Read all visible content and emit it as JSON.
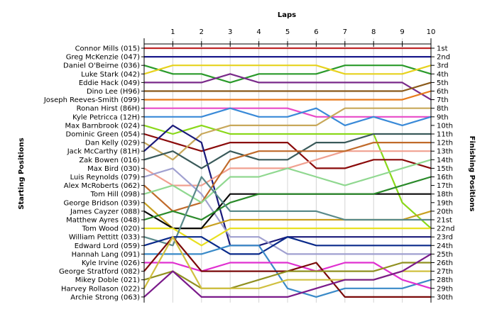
{
  "chart_data": {
    "type": "line",
    "title": "",
    "top_axis_label": "Laps",
    "left_axis_label": "Starting Positions",
    "right_axis_label": "Finishing Positions",
    "laps": [
      1,
      2,
      3,
      4,
      5,
      6,
      7,
      8,
      9,
      10
    ],
    "finishing_labels": [
      "1st",
      "2nd",
      "3rd",
      "4th",
      "5th",
      "6th",
      "7th",
      "8th",
      "9th",
      "10th",
      "11th",
      "12th",
      "13th",
      "14th",
      "15th",
      "16th",
      "17th",
      "18th",
      "19th",
      "20th",
      "21st",
      "22nd",
      "23rd",
      "24th",
      "25th",
      "26th",
      "27th",
      "28th",
      "29th",
      "30th"
    ],
    "grid": "vertical",
    "series": [
      {
        "name": "Connor Mills (015)",
        "color": "#c0282a",
        "positions": [
          1,
          1,
          1,
          1,
          1,
          1,
          1,
          1,
          1,
          1,
          1
        ]
      },
      {
        "name": "Greg McKenzie (047)",
        "color": "#1a1a8c",
        "positions": [
          2,
          2,
          2,
          2,
          2,
          2,
          2,
          2,
          2,
          2,
          2
        ]
      },
      {
        "name": "Daniel O'Beirne (036)",
        "color": "#2a9a2a",
        "positions": [
          3,
          4,
          4,
          5,
          4,
          4,
          4,
          3,
          3,
          3,
          4
        ]
      },
      {
        "name": "Luke Stark (042)",
        "color": "#e6d21e",
        "positions": [
          4,
          3,
          3,
          3,
          3,
          3,
          3,
          4,
          4,
          4,
          3
        ]
      },
      {
        "name": "Eddie Hack (049)",
        "color": "#7a2a8a",
        "positions": [
          5,
          5,
          5,
          4,
          5,
          5,
          5,
          5,
          5,
          5,
          7
        ]
      },
      {
        "name": "Dino Lee (H96)",
        "color": "#8a5a1a",
        "positions": [
          6,
          6,
          6,
          6,
          6,
          6,
          6,
          6,
          6,
          6,
          5
        ]
      },
      {
        "name": "Joseph Reeves-Smith (099)",
        "color": "#e87a1a",
        "positions": [
          7,
          7,
          7,
          7,
          7,
          7,
          7,
          7,
          7,
          7,
          6
        ]
      },
      {
        "name": "Ronan Hirst (86H)",
        "color": "#e84ac8",
        "positions": [
          8,
          8,
          8,
          8,
          8,
          8,
          9,
          9,
          9,
          9,
          9
        ]
      },
      {
        "name": "Kyle Petricca (12H)",
        "color": "#3a8ad8",
        "positions": [
          9,
          9,
          9,
          8,
          9,
          9,
          8,
          10,
          9,
          10,
          9
        ]
      },
      {
        "name": "Max Barnbrook (024)",
        "color": "#8ad81a",
        "positions": [
          10,
          11,
          10,
          11,
          11,
          11,
          11,
          11,
          11,
          19,
          22
        ]
      },
      {
        "name": "Dominic Green (054)",
        "color": "#8a0a0a",
        "positions": [
          11,
          12,
          13,
          12,
          12,
          12,
          15,
          15,
          14,
          14,
          15
        ]
      },
      {
        "name": "Dan Kelly (029)",
        "color": "#c8a85a",
        "positions": [
          12,
          14,
          11,
          10,
          10,
          10,
          10,
          8,
          8,
          8,
          8
        ]
      },
      {
        "name": "Jack McCarthy (81H)",
        "color": "#1a1a7a",
        "positions": [
          13,
          10,
          12,
          24,
          24,
          23,
          23,
          23,
          23,
          23,
          23
        ]
      },
      {
        "name": "Zak Bowen (016)",
        "color": "#3a5a5a",
        "positions": [
          14,
          13,
          15,
          13,
          14,
          14,
          12,
          12,
          11,
          11,
          11
        ]
      },
      {
        "name": "Max Bird (030)",
        "color": "#f0a090",
        "positions": [
          15,
          17,
          17,
          15,
          15,
          15,
          14,
          13,
          13,
          13,
          13
        ]
      },
      {
        "name": "Luis Reynolds (079)",
        "color": "#a0a0d0",
        "positions": [
          16,
          15,
          18,
          23,
          23,
          25,
          25,
          25,
          25,
          25,
          25
        ]
      },
      {
        "name": "Alex McRoberts (062)",
        "color": "#c06a2a",
        "positions": [
          17,
          20,
          19,
          14,
          13,
          13,
          13,
          13,
          12,
          12,
          12
        ]
      },
      {
        "name": "Tom Hill (098)",
        "color": "#90d890",
        "positions": [
          18,
          17,
          19,
          16,
          16,
          15,
          16,
          17,
          16,
          15,
          14
        ]
      },
      {
        "name": "George Bridson (039)",
        "color": "#c8a020",
        "positions": [
          19,
          22,
          22,
          21,
          21,
          21,
          21,
          21,
          21,
          21,
          20
        ]
      },
      {
        "name": "James Cayzer (088)",
        "color": "#0a0a0a",
        "positions": [
          20,
          22,
          22,
          18,
          18,
          18,
          18,
          18,
          18,
          18,
          18
        ]
      },
      {
        "name": "Matthew Ayres (048)",
        "color": "#2a8a2a",
        "positions": [
          21,
          20,
          21,
          19,
          18,
          18,
          18,
          18,
          18,
          17,
          16
        ]
      },
      {
        "name": "Tom Wood (020)",
        "color": "#e8e020",
        "positions": [
          22,
          22,
          24,
          22,
          22,
          22,
          22,
          22,
          22,
          22,
          22
        ]
      },
      {
        "name": "William Pettitt (033)",
        "color": "#5a8a8a",
        "positions": [
          23,
          24,
          16,
          20,
          20,
          20,
          20,
          21,
          21,
          21,
          21
        ]
      },
      {
        "name": "Edward Lord (059)",
        "color": "#0a2a8a",
        "positions": [
          24,
          23,
          23,
          25,
          25,
          23,
          24,
          24,
          24,
          24,
          24
        ]
      },
      {
        "name": "Hannah Lang (091)",
        "color": "#3a8ac8",
        "positions": [
          25,
          25,
          25,
          24,
          24,
          29,
          30,
          29,
          29,
          29,
          28
        ]
      },
      {
        "name": "Kyle Irvine (026)",
        "color": "#e030d0",
        "positions": [
          26,
          26,
          27,
          26,
          26,
          26,
          27,
          26,
          26,
          28,
          29
        ]
      },
      {
        "name": "George Stratford (082)",
        "color": "#7a0a0a",
        "positions": [
          27,
          23,
          27,
          27,
          27,
          27,
          26,
          30,
          30,
          30,
          30
        ]
      },
      {
        "name": "Mikey Doble (021)",
        "color": "#909020",
        "positions": [
          28,
          27,
          29,
          29,
          28,
          27,
          27,
          27,
          27,
          26,
          26
        ]
      },
      {
        "name": "Harvey Rollason (022)",
        "color": "#d0c040",
        "positions": [
          29,
          23,
          29,
          29,
          29,
          28,
          28,
          28,
          28,
          27,
          27
        ]
      },
      {
        "name": "Archie Strong (063)",
        "color": "#7a1a8a",
        "positions": [
          30,
          27,
          30,
          30,
          30,
          30,
          29,
          28,
          28,
          27,
          25
        ]
      }
    ]
  }
}
